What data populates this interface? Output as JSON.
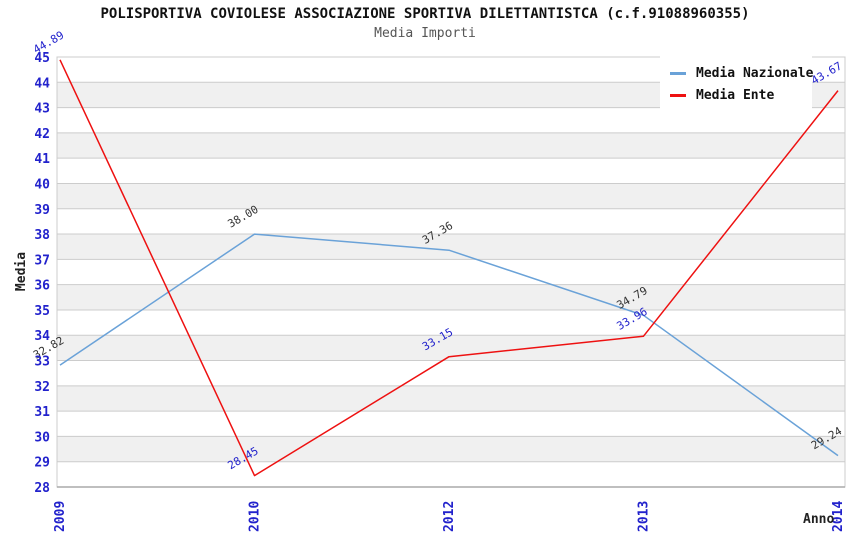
{
  "page": {
    "background": "#ffffff"
  },
  "chart_data": {
    "type": "line",
    "title": "POLISPORTIVA COVIOLESE ASSOCIAZIONE SPORTIVA DILETTANTISTCA (c.f.91088960355)",
    "subtitle": "Media Importi",
    "xlabel": "Anno",
    "ylabel": "Media",
    "x": [
      "2009",
      "2010",
      "2012",
      "2013",
      "2014"
    ],
    "series": [
      {
        "name": "Media Nazionale",
        "color": "#6aa2d8",
        "label_color": "#333333",
        "values": [
          32.82,
          38.0,
          37.36,
          34.79,
          29.24
        ]
      },
      {
        "name": "Media Ente",
        "color": "#ee1111",
        "label_color": "#2222cc",
        "values": [
          44.89,
          28.45,
          33.15,
          33.96,
          43.67
        ]
      }
    ],
    "ylim": [
      28,
      45
    ],
    "ytick_step": 1,
    "grid": true,
    "legend_position": "top-right",
    "value_label_decimals": 2,
    "colors": {
      "tick_label": "#2222cc",
      "stripe": "#f0f0f0",
      "gridline": "#cccccc",
      "plot_border": "#cccccc",
      "bottom_axis": "#aaaaaa"
    }
  }
}
